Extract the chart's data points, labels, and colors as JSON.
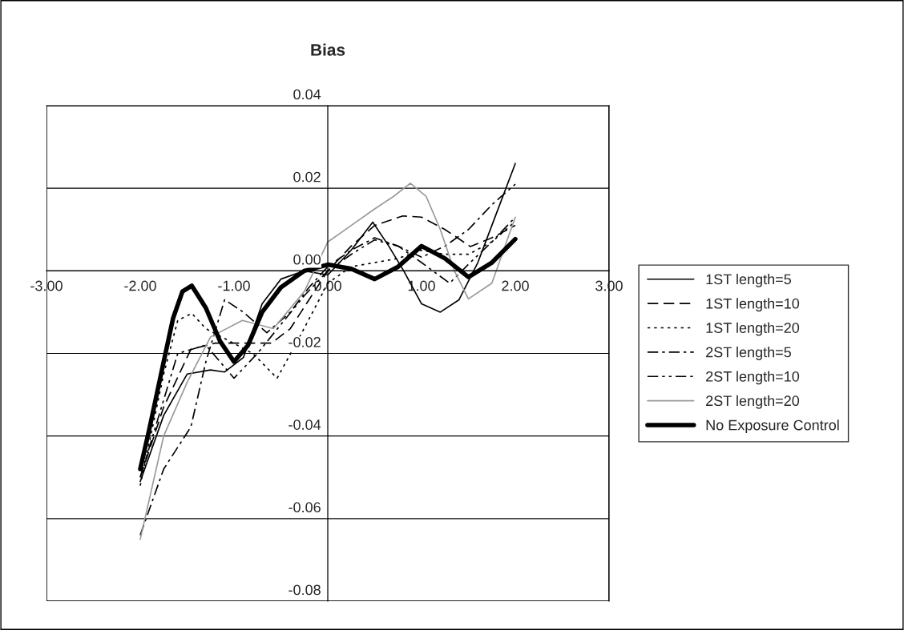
{
  "chart_data": {
    "type": "line",
    "title": "Bias",
    "xlim": [
      -3,
      3
    ],
    "ylim": [
      -0.08,
      0.04
    ],
    "xticks": [
      {
        "value": -3,
        "label": "-3.00"
      },
      {
        "value": -2,
        "label": "-2.00"
      },
      {
        "value": -1,
        "label": "-1.00"
      },
      {
        "value": 0,
        "label": "0.00"
      },
      {
        "value": 1,
        "label": "1.00"
      },
      {
        "value": 2,
        "label": "2.00"
      },
      {
        "value": 3,
        "label": "3.00"
      }
    ],
    "yticks": [
      {
        "value": -0.08,
        "label": "-0.08"
      },
      {
        "value": -0.06,
        "label": "-0.06"
      },
      {
        "value": -0.04,
        "label": "-0.04"
      },
      {
        "value": -0.02,
        "label": "-0.02"
      },
      {
        "value": 0,
        "label": "0.00"
      },
      {
        "value": 0.02,
        "label": "0.02"
      },
      {
        "value": 0.04,
        "label": "0.04"
      }
    ],
    "grid": "y",
    "legend": "right",
    "marker": "none",
    "series": [
      {
        "name": "1ST length=5",
        "color": "#000000",
        "line_style": "solid",
        "x": [
          -2,
          -1.75,
          -1.5,
          -1.25,
          -1.1,
          -0.9,
          -0.7,
          -0.5,
          -0.25,
          0,
          0.25,
          0.48,
          0.65,
          0.81,
          1.0,
          1.2,
          1.4,
          1.6,
          1.8,
          2.0
        ],
        "values": [
          -0.051,
          -0.035,
          -0.025,
          -0.024,
          -0.0245,
          -0.021,
          -0.008,
          -0.002,
          0.0,
          -0.001,
          0.005,
          0.0118,
          0.006,
          0.0,
          -0.008,
          -0.01,
          -0.007,
          0.002,
          0.014,
          0.026
        ]
      },
      {
        "name": "1ST length=10",
        "color": "#000000",
        "line_style": "dashed",
        "x": [
          -2,
          -1.75,
          -1.46,
          -1.2,
          -0.9,
          -0.6,
          -0.4,
          -0.2,
          0,
          0.25,
          0.5,
          0.8,
          1.0,
          1.25,
          1.52,
          1.75,
          2.0
        ],
        "values": [
          -0.05,
          -0.033,
          -0.019,
          -0.0175,
          -0.0175,
          -0.0175,
          -0.014,
          -0.007,
          0.0,
          0.006,
          0.011,
          0.0133,
          0.013,
          0.01,
          0.0059,
          0.008,
          0.011
        ]
      },
      {
        "name": "1ST length=20",
        "color": "#000000",
        "line_style": "dotted",
        "x": [
          -2,
          -1.75,
          -1.6,
          -1.45,
          -1.3,
          -1.05,
          -0.8,
          -0.54,
          -0.3,
          0,
          0.25,
          0.5,
          0.75,
          1.0,
          1.25,
          1.5,
          1.75,
          2.0
        ],
        "values": [
          -0.052,
          -0.025,
          -0.012,
          -0.0103,
          -0.014,
          -0.017,
          -0.02,
          -0.026,
          -0.016,
          -0.003,
          0.001,
          0.002,
          0.003,
          0.005,
          0.004,
          0.004,
          0.007,
          0.012
        ]
      },
      {
        "name": "2ST length=5",
        "color": "#000000",
        "line_style": "dashdot",
        "x": [
          -2,
          -1.75,
          -1.46,
          -1.3,
          -1.1,
          -0.9,
          -0.65,
          -0.4,
          -0.2,
          0,
          0.25,
          0.5,
          0.75,
          1.0,
          1.25,
          1.5,
          1.75,
          2.0
        ],
        "values": [
          -0.064,
          -0.048,
          -0.0378,
          -0.022,
          -0.007,
          -0.01,
          -0.015,
          -0.01,
          -0.004,
          0.001,
          0.005,
          0.008,
          0.006,
          0.0033,
          0.006,
          0.01,
          0.016,
          0.021
        ]
      },
      {
        "name": "2ST length=10",
        "color": "#000000",
        "line_style": "dashdotdot",
        "x": [
          -2,
          -1.8,
          -1.6,
          -1.3,
          -1.0,
          -0.75,
          -0.5,
          -0.25,
          0,
          0.25,
          0.5,
          0.75,
          1.0,
          1.3,
          1.5,
          1.75,
          2.0
        ],
        "values": [
          -0.05,
          -0.035,
          -0.02,
          -0.018,
          -0.026,
          -0.02,
          -0.013,
          -0.006,
          0.0,
          0.004,
          0.0075,
          0.006,
          0.002,
          -0.003,
          0.0016,
          0.007,
          0.013
        ]
      },
      {
        "name": "2ST length=20",
        "color": "#999999",
        "line_style": "solid",
        "x": [
          -2,
          -1.75,
          -1.5,
          -1.25,
          -0.91,
          -0.58,
          -0.25,
          0,
          0.25,
          0.5,
          0.7,
          0.88,
          1.05,
          1.2,
          1.35,
          1.5,
          1.75,
          2.0
        ],
        "values": [
          -0.065,
          -0.04,
          -0.027,
          -0.016,
          -0.012,
          -0.014,
          -0.005,
          0.007,
          0.011,
          0.015,
          0.018,
          0.0212,
          0.018,
          0.01,
          0.0,
          -0.0068,
          -0.003,
          0.013
        ]
      },
      {
        "name": "No Exposure Control",
        "color": "#000000",
        "line_style": "solid",
        "x": [
          -2,
          -1.9,
          -1.75,
          -1.65,
          -1.55,
          -1.45,
          -1.3,
          -1.15,
          -1.0,
          -0.85,
          -0.7,
          -0.5,
          -0.25,
          0,
          0.25,
          0.5,
          0.75,
          1.0,
          1.25,
          1.5,
          1.75,
          2.0
        ],
        "values": [
          -0.048,
          -0.038,
          -0.022,
          -0.0115,
          -0.005,
          -0.0036,
          -0.009,
          -0.017,
          -0.022,
          -0.018,
          -0.01,
          -0.004,
          0.0,
          0.0015,
          0.0005,
          -0.002,
          0.001,
          0.006,
          0.003,
          -0.0015,
          0.002,
          0.0077
        ]
      }
    ]
  }
}
